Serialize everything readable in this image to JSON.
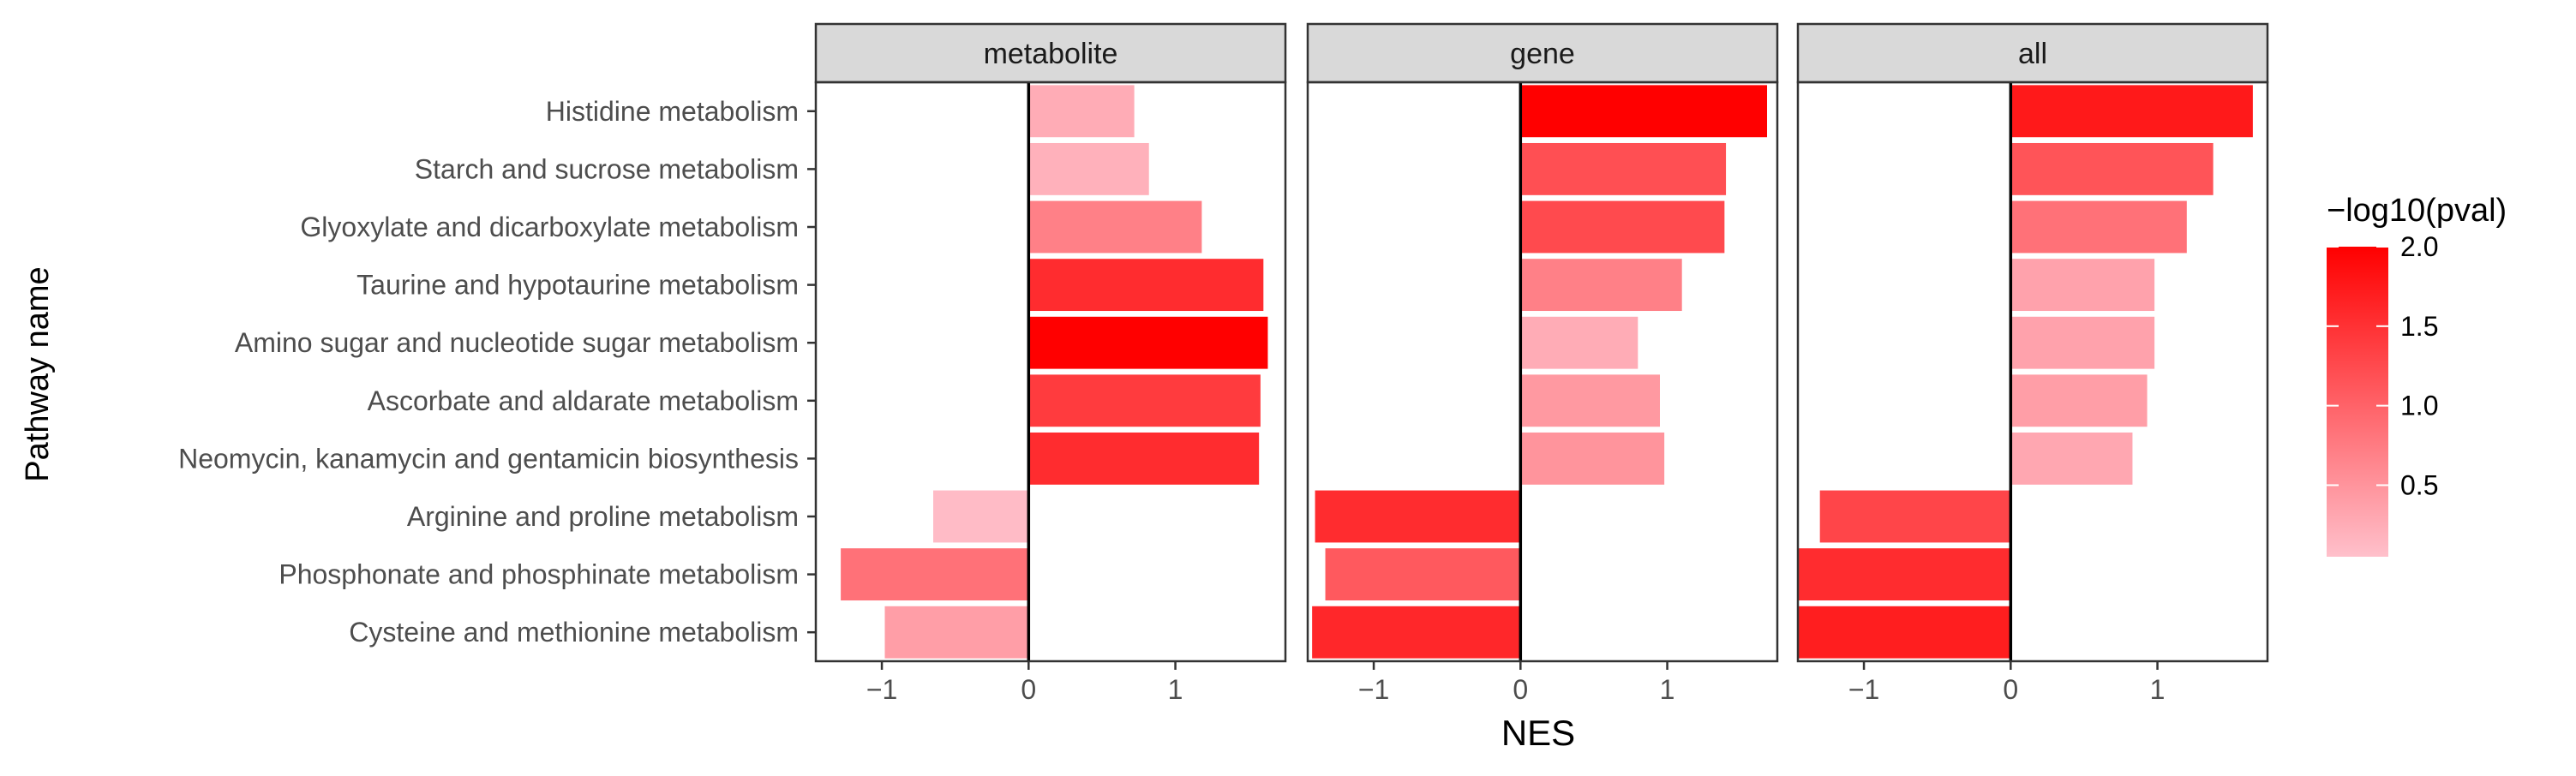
{
  "chart_data": {
    "type": "bar",
    "orientation": "horizontal",
    "ylabel": "Pathway name",
    "xlabel": "NES",
    "categories": [
      "Histidine metabolism",
      "Starch and sucrose metabolism",
      "Glyoxylate and dicarboxylate metabolism",
      "Taurine and hypotaurine metabolism",
      "Amino sugar and nucleotide sugar metabolism",
      "Ascorbate and aldarate metabolism",
      "Neomycin, kanamycin and gentamicin biosynthesis",
      "Arginine and proline metabolism",
      "Phosphonate and phosphinate metabolism",
      "Cysteine and methionine metabolism"
    ],
    "xlim": [
      -1.45,
      1.75
    ],
    "xticks": [
      -1,
      0,
      1
    ],
    "xtick_labels": [
      "−1",
      "0",
      "1"
    ],
    "panels": [
      {
        "label": "metabolite",
        "nes": [
          0.72,
          0.82,
          1.18,
          1.6,
          1.63,
          1.58,
          1.57,
          -0.65,
          -1.28,
          -0.98
        ],
        "neg_log10_pval": [
          0.25,
          0.2,
          0.7,
          1.55,
          2.0,
          1.4,
          1.55,
          0.1,
          0.85,
          0.4
        ]
      },
      {
        "label": "gene",
        "nes": [
          1.68,
          1.4,
          1.39,
          1.1,
          0.8,
          0.95,
          0.98,
          -1.4,
          -1.33,
          -1.42
        ],
        "neg_log10_pval": [
          2.0,
          1.2,
          1.25,
          0.7,
          0.25,
          0.45,
          0.5,
          1.55,
          1.1,
          1.6
        ]
      },
      {
        "label": "all",
        "nes": [
          1.65,
          1.38,
          1.2,
          0.98,
          0.98,
          0.93,
          0.83,
          -1.3,
          -1.45,
          -1.45
        ],
        "neg_log10_pval": [
          1.75,
          1.15,
          0.85,
          0.35,
          0.35,
          0.4,
          0.3,
          1.3,
          1.55,
          1.7
        ]
      }
    ],
    "legend": {
      "title": "−log10(pval)",
      "range": [
        0.05,
        2.0
      ],
      "ticks": [
        0.5,
        1.0,
        1.5,
        2.0
      ],
      "tick_labels": [
        "0.5",
        "1.0",
        "1.5",
        "2.0"
      ],
      "placement": "right",
      "color_low": "#FFC0CB",
      "color_high": "#FF0000"
    },
    "grid": false
  }
}
